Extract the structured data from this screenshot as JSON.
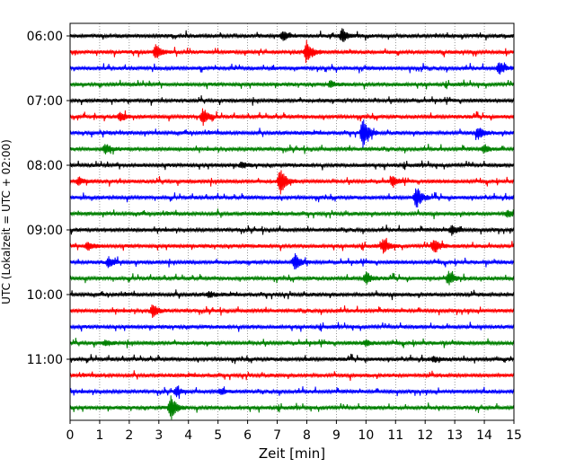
{
  "chart_data": {
    "type": "line",
    "title": "",
    "xlabel": "Zeit  [min]",
    "ylabel": "UTC (Lokalzeit = UTC + 02:00)",
    "xlim": [
      0,
      15
    ],
    "xticks": [
      0,
      1,
      2,
      3,
      4,
      5,
      6,
      7,
      8,
      9,
      10,
      11,
      12,
      13,
      14,
      15
    ],
    "yticks": [
      "06:00",
      "07:00",
      "08:00",
      "09:00",
      "10:00",
      "11:00"
    ],
    "grid": "vertical dotted at each minute",
    "trace_interval_min": 15,
    "colors_cycle": [
      "#000000",
      "#ff0000",
      "#0000ff",
      "#008000"
    ],
    "series": [
      {
        "start": "06:00",
        "color": "#000000",
        "events": [
          {
            "t": 7.2,
            "amp": 0.6
          },
          {
            "t": 9.2,
            "amp": 0.8
          }
        ]
      },
      {
        "start": "06:15",
        "color": "#ff0000",
        "events": [
          {
            "t": 2.9,
            "amp": 0.8
          },
          {
            "t": 8.0,
            "amp": 1.4
          }
        ]
      },
      {
        "start": "06:30",
        "color": "#0000ff",
        "events": [
          {
            "t": 14.5,
            "amp": 0.7
          }
        ]
      },
      {
        "start": "06:45",
        "color": "#008000",
        "events": [
          {
            "t": 8.8,
            "amp": 0.3
          }
        ]
      },
      {
        "start": "07:00",
        "color": "#000000",
        "events": []
      },
      {
        "start": "07:15",
        "color": "#ff0000",
        "events": [
          {
            "t": 1.7,
            "amp": 0.5
          },
          {
            "t": 4.5,
            "amp": 1.0
          }
        ]
      },
      {
        "start": "07:30",
        "color": "#0000ff",
        "events": [
          {
            "t": 9.9,
            "amp": 2.0
          },
          {
            "t": 13.8,
            "amp": 0.7
          }
        ]
      },
      {
        "start": "07:45",
        "color": "#008000",
        "events": [
          {
            "t": 1.2,
            "amp": 0.6
          },
          {
            "t": 14.0,
            "amp": 0.4
          }
        ]
      },
      {
        "start": "08:00",
        "color": "#000000",
        "events": [
          {
            "t": 5.8,
            "amp": 0.3
          }
        ]
      },
      {
        "start": "08:15",
        "color": "#ff0000",
        "events": [
          {
            "t": 0.3,
            "amp": 0.4
          },
          {
            "t": 7.1,
            "amp": 1.6
          },
          {
            "t": 10.9,
            "amp": 0.5
          }
        ]
      },
      {
        "start": "08:30",
        "color": "#0000ff",
        "events": [
          {
            "t": 11.7,
            "amp": 1.3
          }
        ]
      },
      {
        "start": "08:45",
        "color": "#008000",
        "events": [
          {
            "t": 14.8,
            "amp": 0.4
          }
        ]
      },
      {
        "start": "09:00",
        "color": "#000000",
        "events": [
          {
            "t": 12.9,
            "amp": 0.6
          }
        ]
      },
      {
        "start": "09:15",
        "color": "#ff0000",
        "events": [
          {
            "t": 0.6,
            "amp": 0.5
          },
          {
            "t": 10.6,
            "amp": 0.9
          },
          {
            "t": 12.3,
            "amp": 0.9
          }
        ]
      },
      {
        "start": "09:30",
        "color": "#0000ff",
        "events": [
          {
            "t": 1.3,
            "amp": 0.6
          },
          {
            "t": 7.6,
            "amp": 1.0
          }
        ]
      },
      {
        "start": "09:45",
        "color": "#008000",
        "events": [
          {
            "t": 10.0,
            "amp": 0.7
          },
          {
            "t": 12.8,
            "amp": 0.8
          }
        ]
      },
      {
        "start": "10:00",
        "color": "#000000",
        "events": [
          {
            "t": 4.7,
            "amp": 0.3
          }
        ]
      },
      {
        "start": "10:15",
        "color": "#ff0000",
        "events": [
          {
            "t": 2.8,
            "amp": 0.8
          }
        ]
      },
      {
        "start": "10:30",
        "color": "#0000ff",
        "events": []
      },
      {
        "start": "10:45",
        "color": "#008000",
        "events": [
          {
            "t": 1.2,
            "amp": 0.3
          },
          {
            "t": 10.0,
            "amp": 0.3
          }
        ]
      },
      {
        "start": "11:00",
        "color": "#000000",
        "events": [
          {
            "t": 12.3,
            "amp": 0.3
          }
        ]
      },
      {
        "start": "11:15",
        "color": "#ff0000",
        "events": []
      },
      {
        "start": "11:30",
        "color": "#0000ff",
        "events": [
          {
            "t": 3.6,
            "amp": 0.5
          },
          {
            "t": 5.1,
            "amp": 0.3
          }
        ]
      },
      {
        "start": "11:45",
        "color": "#008000",
        "events": [
          {
            "t": 3.4,
            "amp": 1.4
          }
        ]
      }
    ]
  }
}
